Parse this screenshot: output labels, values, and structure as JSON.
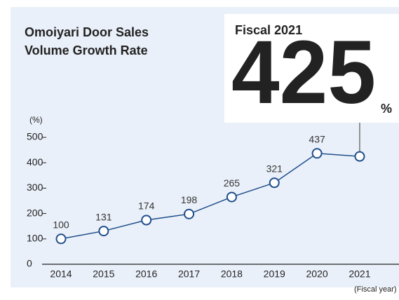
{
  "chart_data": {
    "type": "line",
    "title_lines": [
      "Omoiyari Door Sales",
      "Volume Growth Rate"
    ],
    "highlight_title": "Fiscal 2021",
    "highlight_unit": "%",
    "y_unit_label": "(%)",
    "x_axis_label": "(Fiscal year)",
    "categories": [
      "2014",
      "2015",
      "2016",
      "2017",
      "2018",
      "2019",
      "2020",
      "2021"
    ],
    "series": [
      {
        "name": "Growth rate",
        "color": "#1f4e8c",
        "values": [
          100,
          131,
          174,
          198,
          265,
          321,
          437,
          425
        ]
      }
    ],
    "ylim": [
      0,
      500
    ],
    "yticks": [
      0,
      100,
      200,
      300,
      400,
      500
    ],
    "highlight_color": "#8ab4e0"
  }
}
